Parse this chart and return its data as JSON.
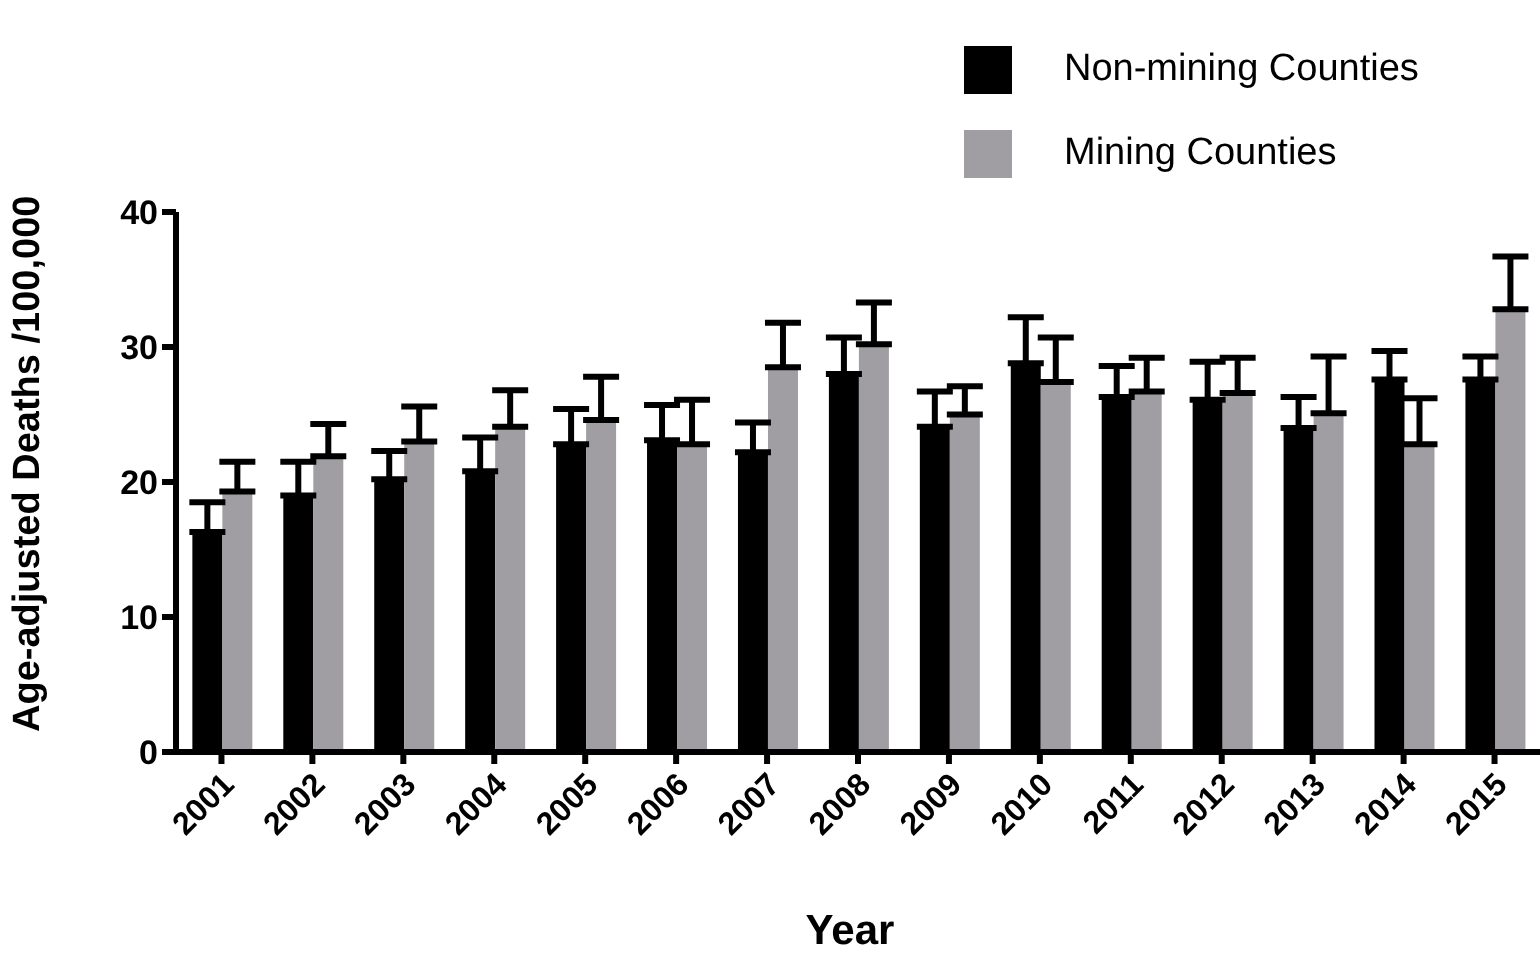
{
  "chart_data": {
    "type": "bar",
    "xlabel": "Year",
    "ylabel": "Age-adjusted Deaths /100,000",
    "categories": [
      "2001",
      "2002",
      "2003",
      "2004",
      "2005",
      "2006",
      "2007",
      "2008",
      "2009",
      "2010",
      "2011",
      "2012",
      "2013",
      "2014",
      "2015"
    ],
    "series": [
      {
        "name": "Non-mining Counties",
        "color": "#000000",
        "values": [
          16.3,
          19.0,
          20.2,
          20.8,
          22.8,
          23.1,
          22.2,
          28.0,
          24.1,
          28.8,
          26.3,
          26.1,
          24.0,
          27.6,
          27.6
        ],
        "errors": [
          [
            16.3,
            18.5
          ],
          [
            19.0,
            21.5
          ],
          [
            20.2,
            22.3
          ],
          [
            20.8,
            23.3
          ],
          [
            22.8,
            25.4
          ],
          [
            23.1,
            25.7
          ],
          [
            22.2,
            24.4
          ],
          [
            28.0,
            30.7
          ],
          [
            24.1,
            26.7
          ],
          [
            28.8,
            32.2
          ],
          [
            26.3,
            28.6
          ],
          [
            26.1,
            28.9
          ],
          [
            24.0,
            26.3
          ],
          [
            27.6,
            29.7
          ],
          [
            27.6,
            29.3
          ]
        ]
      },
      {
        "name": "Mining Counties",
        "color": "#a09ea3",
        "values": [
          19.3,
          21.9,
          23.0,
          24.1,
          24.6,
          22.8,
          28.5,
          30.2,
          25.0,
          27.4,
          26.7,
          26.6,
          25.1,
          22.8,
          32.8
        ],
        "errors": [
          [
            19.3,
            21.5
          ],
          [
            21.9,
            24.3
          ],
          [
            23.0,
            25.6
          ],
          [
            24.1,
            26.8
          ],
          [
            24.6,
            27.8
          ],
          [
            22.8,
            26.1
          ],
          [
            28.5,
            31.8
          ],
          [
            30.2,
            33.3
          ],
          [
            25.0,
            27.1
          ],
          [
            27.4,
            30.7
          ],
          [
            26.7,
            29.2
          ],
          [
            26.6,
            29.2
          ],
          [
            25.1,
            29.3
          ],
          [
            22.8,
            26.2
          ],
          [
            32.8,
            36.7
          ]
        ]
      }
    ],
    "ylim": [
      0,
      40
    ],
    "yticks": [
      0,
      10,
      20,
      30,
      40
    ],
    "grid": false,
    "legend": "top right"
  }
}
